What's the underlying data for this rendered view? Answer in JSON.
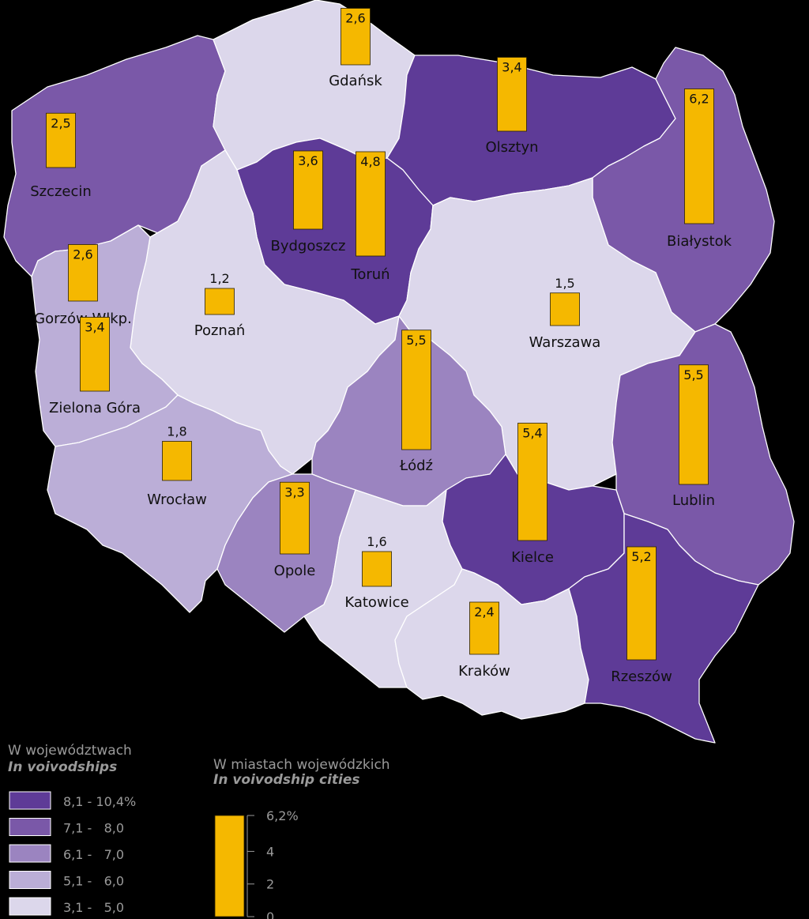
{
  "colors": {
    "c5": "#5e3b97",
    "c4": "#7a58a8",
    "c3": "#9b84c0",
    "c2": "#bbaed7",
    "c1": "#dcd7eb",
    "bar": "#f5b800"
  },
  "regions": [
    {
      "id": "zachodniopomorskie",
      "cls": "c4"
    },
    {
      "id": "pomorskie",
      "cls": "c1"
    },
    {
      "id": "warminsko-mazurskie",
      "cls": "c5"
    },
    {
      "id": "podlaskie",
      "cls": "c4"
    },
    {
      "id": "kujawsko-pomorskie",
      "cls": "c5"
    },
    {
      "id": "wielkopolskie",
      "cls": "c1"
    },
    {
      "id": "lubuskie",
      "cls": "c2"
    },
    {
      "id": "mazowieckie",
      "cls": "c1"
    },
    {
      "id": "lodzkie",
      "cls": "c3"
    },
    {
      "id": "lubelskie",
      "cls": "c4"
    },
    {
      "id": "dolnoslaskie",
      "cls": "c2"
    },
    {
      "id": "opolskie",
      "cls": "c3"
    },
    {
      "id": "slaskie",
      "cls": "c1"
    },
    {
      "id": "swietokrzyskie",
      "cls": "c5"
    },
    {
      "id": "malopolskie",
      "cls": "c1"
    },
    {
      "id": "podkarpackie",
      "cls": "c5"
    }
  ],
  "chart_data": {
    "type": "bar",
    "unit": "%",
    "max": 6.2,
    "cities": [
      {
        "name": "Gdańsk",
        "value": 2.6,
        "value_label": "2,6"
      },
      {
        "name": "Olsztyn",
        "value": 3.4,
        "value_label": "3,4"
      },
      {
        "name": "Szczecin",
        "value": 2.5,
        "value_label": "2,5"
      },
      {
        "name": "Białystok",
        "value": 6.2,
        "value_label": "6,2"
      },
      {
        "name": "Bydgoszcz",
        "value": 3.6,
        "value_label": "3,6"
      },
      {
        "name": "Toruń",
        "value": 4.8,
        "value_label": "4,8"
      },
      {
        "name": "Gorzów Wlkp.",
        "value": 2.6,
        "value_label": "2,6"
      },
      {
        "name": "Poznań",
        "value": 1.2,
        "value_label": "1,2"
      },
      {
        "name": "Warszawa",
        "value": 1.5,
        "value_label": "1,5"
      },
      {
        "name": "Zielona Góra",
        "value": 3.4,
        "value_label": "3,4"
      },
      {
        "name": "Łódź",
        "value": 5.5,
        "value_label": "5,5"
      },
      {
        "name": "Lublin",
        "value": 5.5,
        "value_label": "5,5"
      },
      {
        "name": "Wrocław",
        "value": 1.8,
        "value_label": "1,8"
      },
      {
        "name": "Kielce",
        "value": 5.4,
        "value_label": "5,4"
      },
      {
        "name": "Opole",
        "value": 3.3,
        "value_label": "3,3"
      },
      {
        "name": "Katowice",
        "value": 1.6,
        "value_label": "1,6"
      },
      {
        "name": "Rzeszów",
        "value": 5.2,
        "value_label": "5,2"
      },
      {
        "name": "Kraków",
        "value": 2.4,
        "value_label": "2,4"
      }
    ]
  },
  "legend": {
    "voivodships": {
      "title": "W województwach",
      "subtitle": "In voivodships",
      "classes": [
        {
          "label": "8,1 - 10,4%",
          "color": "#5e3b97"
        },
        {
          "label": "7,1 -   8,0",
          "color": "#7a58a8"
        },
        {
          "label": "6,1 -   7,0",
          "color": "#9b84c0"
        },
        {
          "label": "5,1 -   6,0",
          "color": "#bbaed7"
        },
        {
          "label": "3,1 -   5,0",
          "color": "#dcd7eb"
        }
      ]
    },
    "cities": {
      "title": "W miastach wojewódzkich",
      "subtitle": "In voivodship cities",
      "ticks": [
        {
          "label": "6,2%",
          "value": 6.2
        },
        {
          "label": "4",
          "value": 4
        },
        {
          "label": "2",
          "value": 2
        },
        {
          "label": "0",
          "value": 0
        }
      ]
    }
  }
}
